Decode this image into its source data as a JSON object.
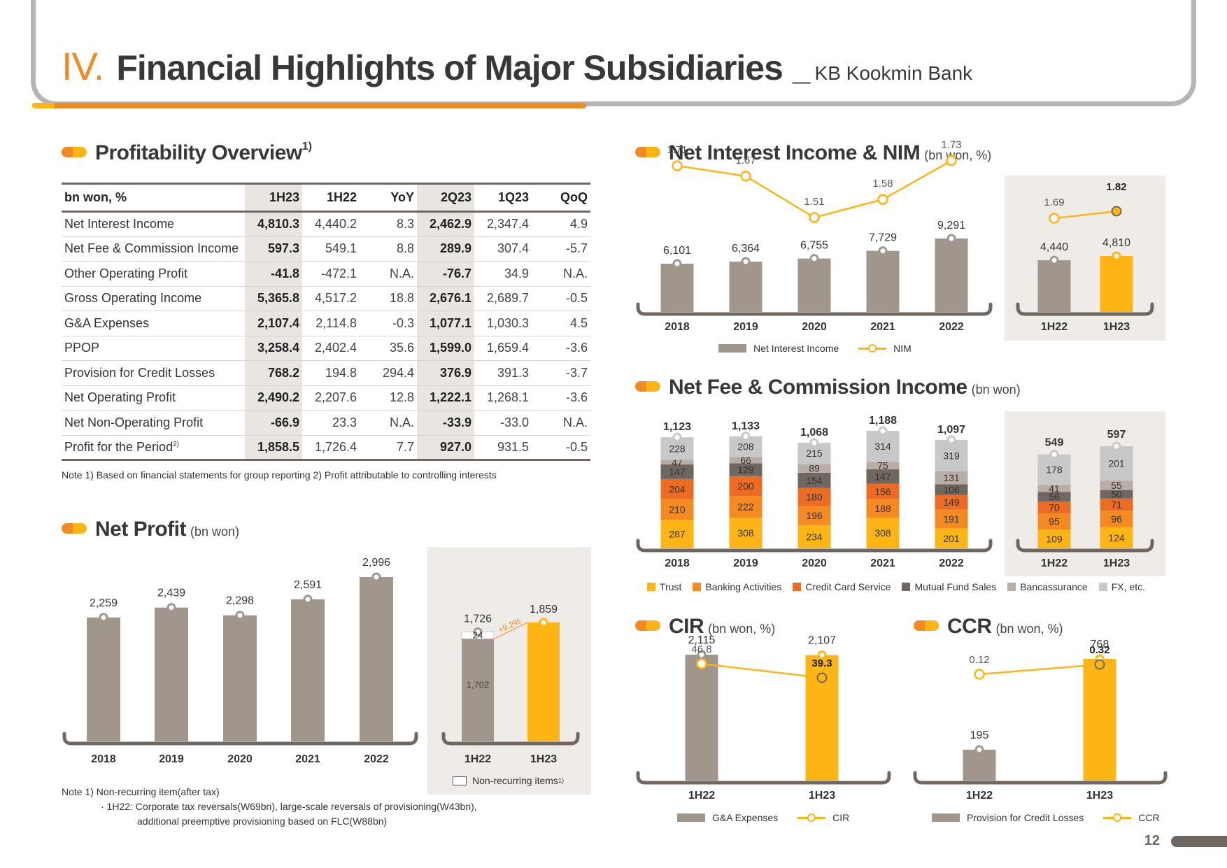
{
  "header": {
    "roman": "IV.",
    "title": "Financial Highlights of Major Subsidiaries",
    "separator": "_",
    "subtitle": "KB Kookmin Bank"
  },
  "profitability": {
    "title": "Profitability Overview",
    "title_sup": "1)",
    "columns": [
      "bn won, %",
      "1H23",
      "1H22",
      "YoY",
      "2Q23",
      "1Q23",
      "QoQ"
    ],
    "rows": [
      {
        "label": "Net Interest Income",
        "sup": "",
        "values": [
          "4,810.3",
          "4,440.2",
          "8.3",
          "2,462.9",
          "2,347.4",
          "4.9"
        ]
      },
      {
        "label": "Net Fee & Commission Income",
        "sup": "",
        "values": [
          "597.3",
          "549.1",
          "8.8",
          "289.9",
          "307.4",
          "-5.7"
        ]
      },
      {
        "label": "Other Operating Profit",
        "sup": "",
        "values": [
          "-41.8",
          "-472.1",
          "N.A.",
          "-76.7",
          "34.9",
          "N.A."
        ]
      },
      {
        "label": "Gross Operating Income",
        "sup": "",
        "values": [
          "5,365.8",
          "4,517.2",
          "18.8",
          "2,676.1",
          "2,689.7",
          "-0.5"
        ]
      },
      {
        "label": "G&A Expenses",
        "sup": "",
        "values": [
          "2,107.4",
          "2,114.8",
          "-0.3",
          "1,077.1",
          "1,030.3",
          "4.5"
        ]
      },
      {
        "label": "PPOP",
        "sup": "",
        "values": [
          "3,258.4",
          "2,402.4",
          "35.6",
          "1,599.0",
          "1,659.4",
          "-3.6"
        ]
      },
      {
        "label": "Provision for Credit Losses",
        "sup": "",
        "values": [
          "768.2",
          "194.8",
          "294.4",
          "376.9",
          "391.3",
          "-3.7"
        ]
      },
      {
        "label": "Net Operating Profit",
        "sup": "",
        "values": [
          "2,490.2",
          "2,207.6",
          "12.8",
          "1,222.1",
          "1,268.1",
          "-3.6"
        ]
      },
      {
        "label": "Net Non-Operating Profit",
        "sup": "",
        "values": [
          "-66.9",
          "23.3",
          "N.A.",
          "-33.9",
          "-33.0",
          "N.A."
        ]
      },
      {
        "label": "Profit for the Period",
        "sup": "2)",
        "values": [
          "1,858.5",
          "1,726.4",
          "7.7",
          "927.0",
          "931.5",
          "-0.5"
        ]
      }
    ],
    "note": "Note 1) Based on financial statements for group reporting    2) Profit attributable to controlling interests"
  },
  "colors": {
    "bar_gray": "#a0968c",
    "bar_yellow": "#fdb515",
    "line_yellow": "#fdb515",
    "axis": "#6f6760",
    "shade": "#efebe7",
    "accent_orange": "#f08a22",
    "trust": "#fdb515",
    "banking": "#f58a22",
    "credit_card": "#ec6c23",
    "mutual_fund": "#6f6760",
    "bancassurance": "#baaea4",
    "fx": "#c8c8c8"
  },
  "chart_data": [
    {
      "id": "net_profit",
      "type": "bar",
      "title": "Net Profit",
      "unit": "(bn won)",
      "categories": [
        "2018",
        "2019",
        "2020",
        "2021",
        "2022"
      ],
      "values": [
        2259,
        2439,
        2298,
        2591,
        2996
      ],
      "labels": [
        "2,259",
        "2,439",
        "2,298",
        "2,591",
        "2,996"
      ],
      "ylim": [
        0,
        3200
      ],
      "half_year": {
        "categories": [
          "1H22",
          "1H23"
        ],
        "values": [
          1726,
          1859
        ],
        "labels": [
          "1,726",
          "1,859"
        ],
        "recurring": 1702,
        "recurring_label": "1,702",
        "non_recurring": 24,
        "non_recurring_label": "24",
        "growth_label": "+9.2%",
        "legend": "Non-recurring items",
        "legend_sup": "1)"
      },
      "notes": [
        "Note 1) Non-recurring item(after tax)",
        "· 1H22: Corporate tax reversals(W69bn), large-scale reversals of provisioning(W43bn),",
        "additional preemptive provisioning based on FLC(W88bn)"
      ]
    },
    {
      "id": "nii_nim",
      "type": "bar+line",
      "title": "Net Interest Income & NIM",
      "unit": "(bn won, %)",
      "categories": [
        "2018",
        "2019",
        "2020",
        "2021",
        "2022"
      ],
      "series": [
        {
          "name": "Net Interest Income",
          "values": [
            6101,
            6364,
            6755,
            7729,
            9291
          ],
          "labels": [
            "6,101",
            "6,364",
            "6,755",
            "7,729",
            "9,291"
          ]
        },
        {
          "name": "NIM",
          "values": [
            1.71,
            1.67,
            1.51,
            1.58,
            1.73
          ],
          "labels": [
            "1.71",
            "1.67",
            "1.51",
            "1.58",
            "1.73"
          ]
        }
      ],
      "half_year": {
        "categories": [
          "1H22",
          "1H23"
        ],
        "bars": [
          4440,
          4810
        ],
        "bar_labels": [
          "4,440",
          "4,810"
        ],
        "line": [
          1.69,
          1.82
        ],
        "line_labels": [
          "1.69",
          "1.82"
        ]
      },
      "legend": [
        "Net Interest Income",
        "NIM"
      ]
    },
    {
      "id": "fee_income",
      "type": "stacked-bar",
      "title": "Net Fee & Commission Income",
      "unit": "(bn won)",
      "categories": [
        "2018",
        "2019",
        "2020",
        "2021",
        "2022"
      ],
      "series": [
        {
          "name": "Trust",
          "values": [
            287,
            308,
            234,
            308,
            201
          ]
        },
        {
          "name": "Banking Activities",
          "values": [
            210,
            222,
            196,
            188,
            191
          ]
        },
        {
          "name": "Credit Card Service",
          "values": [
            204,
            200,
            180,
            156,
            149
          ]
        },
        {
          "name": "Mutual Fund Sales",
          "values": [
            147,
            129,
            154,
            147,
            106
          ]
        },
        {
          "name": "Bancassurance",
          "values": [
            47,
            66,
            89,
            75,
            131
          ]
        },
        {
          "name": "FX, etc.",
          "values": [
            228,
            208,
            215,
            314,
            319
          ]
        }
      ],
      "totals": [
        1123,
        1133,
        1068,
        1188,
        1097
      ],
      "total_labels": [
        "1,123",
        "1,133",
        "1,068",
        "1,188",
        "1,097"
      ],
      "half_year": {
        "categories": [
          "1H22",
          "1H23"
        ],
        "series": [
          {
            "name": "Trust",
            "values": [
              109,
              124
            ]
          },
          {
            "name": "Banking Activities",
            "values": [
              95,
              96
            ]
          },
          {
            "name": "Credit Card Service",
            "values": [
              70,
              71
            ]
          },
          {
            "name": "Mutual Fund Sales",
            "values": [
              56,
              50
            ]
          },
          {
            "name": "Bancassurance",
            "values": [
              41,
              55
            ]
          },
          {
            "name": "FX, etc.",
            "values": [
              178,
              201
            ]
          }
        ],
        "totals": [
          549,
          597
        ],
        "total_labels": [
          "549",
          "597"
        ]
      },
      "legend": [
        "Trust",
        "Banking Activities",
        "Credit Card Service",
        "Mutual Fund Sales",
        "Bancassurance",
        "FX, etc."
      ]
    },
    {
      "id": "cir",
      "type": "bar+line",
      "title": "CIR",
      "unit": "(bn won, %)",
      "categories": [
        "1H22",
        "1H23"
      ],
      "series": [
        {
          "name": "G&A Expenses",
          "values": [
            2115,
            2107
          ],
          "labels": [
            "2,115",
            "2,107"
          ]
        },
        {
          "name": "CIR",
          "values": [
            46.8,
            39.3
          ],
          "labels": [
            "46.8",
            "39.3"
          ]
        }
      ],
      "legend": [
        "G&A Expenses",
        "CIR"
      ]
    },
    {
      "id": "ccr",
      "type": "bar+line",
      "title": "CCR",
      "unit": "(bn won, %)",
      "categories": [
        "1H22",
        "1H23"
      ],
      "series": [
        {
          "name": "Provision for Credit Losses",
          "values": [
            195,
            768
          ],
          "labels": [
            "195",
            "768"
          ]
        },
        {
          "name": "CCR",
          "values": [
            0.12,
            0.32
          ],
          "labels": [
            "0.12",
            "0.32"
          ]
        }
      ],
      "legend": [
        "Provision for Credit Losses",
        "CCR"
      ]
    }
  ],
  "page_number": "12"
}
